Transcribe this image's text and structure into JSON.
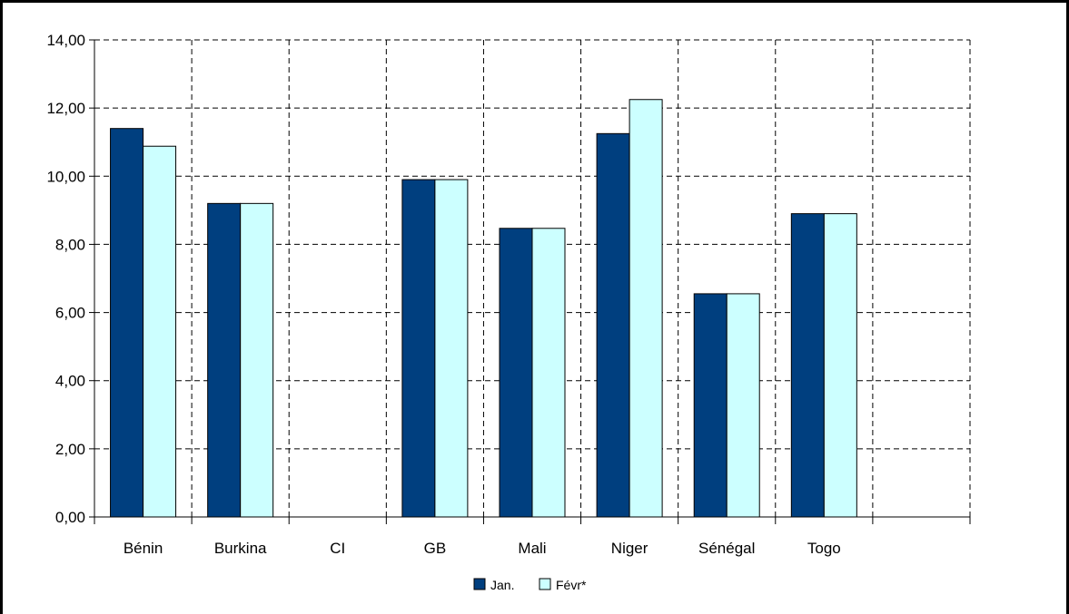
{
  "chart_data": {
    "type": "bar",
    "categories": [
      "Bénin",
      "Burkina",
      "CI",
      "GB",
      "Mali",
      "Niger",
      "Sénégal",
      "Togo",
      ""
    ],
    "series": [
      {
        "name": "Jan.",
        "color": "#003f7f",
        "values": [
          11.4,
          9.2,
          null,
          9.9,
          8.47,
          11.25,
          6.55,
          8.9,
          null
        ]
      },
      {
        "name": "Févr*",
        "color": "#ccffff",
        "values": [
          10.88,
          9.2,
          null,
          9.9,
          8.47,
          12.25,
          6.55,
          8.9,
          null
        ]
      }
    ],
    "yticks": [
      "0,00",
      "2,00",
      "4,00",
      "6,00",
      "8,00",
      "10,00",
      "12,00",
      "14,00"
    ],
    "ylim": [
      0,
      14
    ],
    "grid": true,
    "legend_position": "bottom",
    "title": "",
    "xlabel": "",
    "ylabel": ""
  }
}
